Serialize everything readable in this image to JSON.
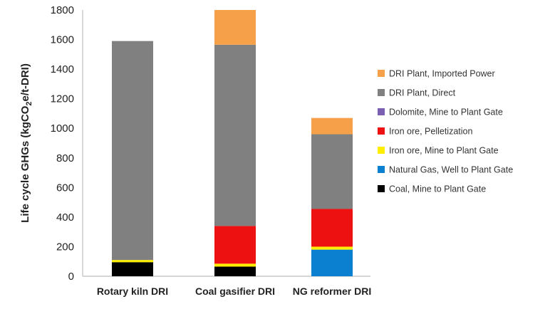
{
  "chart_data": {
    "type": "bar",
    "stacked": true,
    "categories": [
      "Rotary kiln DRI",
      "Coal gasifier DRI",
      "NG reformer DRI"
    ],
    "ylabel_prefix": "Life cycle GHGs (kgCO",
    "ylabel_sub": "2",
    "ylabel_suffix": "e/t-DRI)",
    "ylim": [
      0,
      1800
    ],
    "yticks": [
      "0",
      "200",
      "400",
      "600",
      "800",
      "1000",
      "1200",
      "1400",
      "1600",
      "1800"
    ],
    "grid": false,
    "legend_position": "right",
    "series": [
      {
        "name": "Coal, Mine to Plant Gate",
        "color": "#000000",
        "values": [
          95,
          65,
          0
        ]
      },
      {
        "name": "Natural Gas, Well to Plant Gate",
        "color": "#0b7fd0",
        "values": [
          0,
          0,
          180
        ]
      },
      {
        "name": "Iron ore, Mine to Plant Gate",
        "color": "#ffee00",
        "values": [
          15,
          20,
          20
        ]
      },
      {
        "name": "Iron ore, Pelletization",
        "color": "#ee1111",
        "values": [
          0,
          255,
          255
        ]
      },
      {
        "name": "Dolomite, Mine to Plant Gate",
        "color": "#7b5fb0",
        "values": [
          0,
          0,
          0
        ]
      },
      {
        "name": "DRI Plant, Direct",
        "color": "#808080",
        "values": [
          1480,
          1225,
          505
        ]
      },
      {
        "name": "DRI Plant, Imported Power",
        "color": "#f7a04a",
        "values": [
          0,
          235,
          110
        ]
      }
    ]
  }
}
